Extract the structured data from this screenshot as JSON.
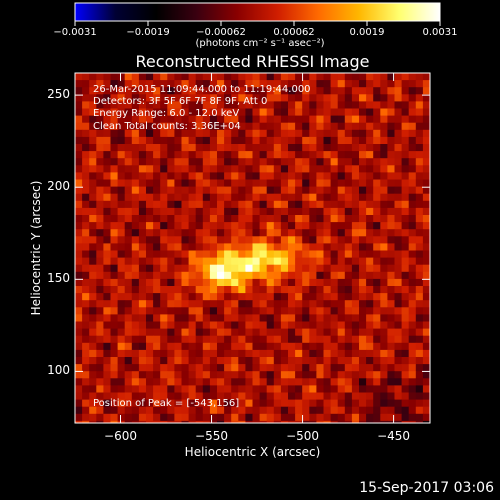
{
  "colors": {
    "background": "#000000",
    "frame": "#ffffff",
    "colormap": [
      "#0000ff",
      "#000033",
      "#000000",
      "#3a0010",
      "#8a0000",
      "#d01e00",
      "#ff6a00",
      "#ffb700",
      "#ffff70",
      "#ffffff"
    ]
  },
  "chart_data": {
    "type": "heatmap",
    "title": "Reconstructed RHESSI Image",
    "xlabel": "Heliocentric X (arcsec)",
    "ylabel": "Heliocentric Y (arcsec)",
    "xlim": [
      -625,
      -430
    ],
    "ylim": [
      72,
      262
    ],
    "xticks": [
      -600,
      -550,
      -500,
      -450
    ],
    "yticks": [
      100,
      150,
      200,
      250
    ],
    "xtick_labels": [
      "−600",
      "−550",
      "−500",
      "−450"
    ],
    "ytick_labels": [
      "100",
      "150",
      "200",
      "250"
    ],
    "colorbar": {
      "range": [
        -0.0031,
        0.0031
      ],
      "tick_labels": [
        "−0.0031",
        "−0.0019",
        "−0.00062",
        "0.00062",
        "0.0019",
        "0.0031"
      ],
      "units": "(photons cm⁻² s⁻¹ asec⁻²)"
    },
    "peak": {
      "x": -543,
      "y": 156
    },
    "annotations": {
      "time": "26-Mar-2015 11:09:44.000 to 11:19:44.000",
      "detectors": "Detectors: 3F 5F 6F 7F 8F 9F, Att 0",
      "energy": "Energy Range: 6.0 - 12.0 keV",
      "clean": "Clean     Total counts: 3.36E+04",
      "peak_text": "Position of Peak = [-543,156]"
    }
  },
  "footer": {
    "date": "15-Sep-2017 03:06"
  }
}
